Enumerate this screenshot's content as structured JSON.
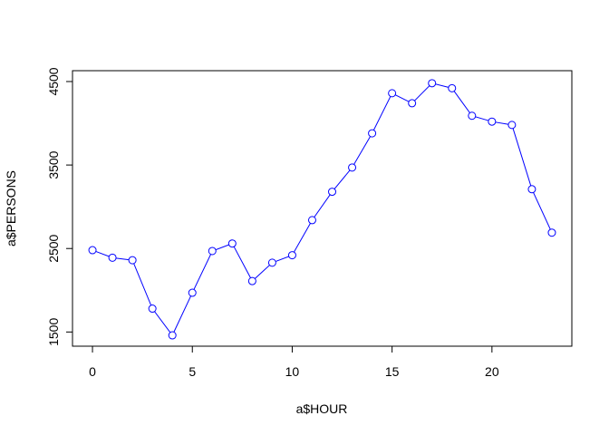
{
  "chart_data": {
    "type": "line",
    "title": "",
    "xlabel": "a$HOUR",
    "ylabel": "a$PERSONS",
    "xlim": [
      -1.0,
      24.0
    ],
    "ylim": [
      1330,
      4630
    ],
    "x_ticks": [
      0,
      5,
      10,
      15,
      20
    ],
    "y_ticks": [
      1500,
      2500,
      3500,
      4500
    ],
    "x_tick_labels": [
      "0",
      "5",
      "10",
      "15",
      "20"
    ],
    "y_tick_labels": [
      "1500",
      "2500",
      "3500",
      "4500"
    ],
    "grid": false,
    "legend": "none",
    "line_color": "#0000ff",
    "marker": "open-circle",
    "x": [
      0,
      1,
      2,
      3,
      4,
      5,
      6,
      7,
      8,
      9,
      10,
      11,
      12,
      13,
      14,
      15,
      16,
      17,
      18,
      19,
      20,
      21,
      22,
      23
    ],
    "values": [
      2480,
      2390,
      2360,
      1780,
      1460,
      1970,
      2470,
      2560,
      2110,
      2330,
      2420,
      2840,
      3180,
      3470,
      3880,
      4360,
      4240,
      4480,
      4420,
      4090,
      4020,
      3980,
      3210,
      2690
    ]
  }
}
